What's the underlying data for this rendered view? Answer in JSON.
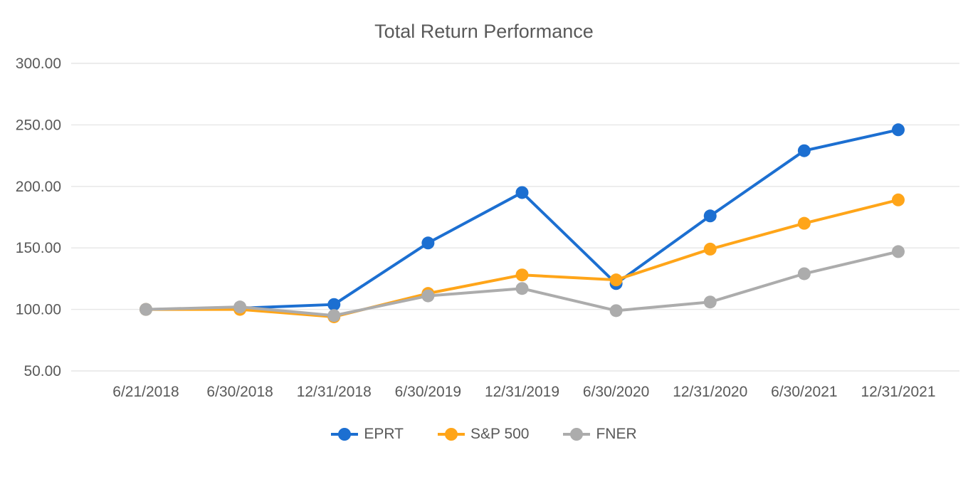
{
  "chart_data": {
    "type": "line",
    "title": "Total Return Performance",
    "categories": [
      "6/21/2018",
      "6/30/2018",
      "12/31/2018",
      "6/30/2019",
      "12/31/2019",
      "6/30/2020",
      "12/31/2020",
      "6/30/2021",
      "12/31/2021"
    ],
    "series": [
      {
        "name": "EPRT",
        "color": "#1C6FD1",
        "values": [
          100,
          101,
          104,
          154,
          195,
          121,
          176,
          229,
          246
        ]
      },
      {
        "name": "S&P 500",
        "color": "#FFA519",
        "values": [
          100,
          100,
          94,
          113,
          128,
          124,
          149,
          170,
          189
        ]
      },
      {
        "name": "FNER",
        "color": "#ACACAC",
        "values": [
          100,
          102,
          95,
          111,
          117,
          99,
          106,
          129,
          147
        ]
      }
    ],
    "ylim": [
      50,
      300
    ],
    "yticks": [
      300,
      250,
      200,
      150,
      100,
      50
    ],
    "ytick_label_format": "2-decimals",
    "xlabel": "",
    "ylabel": "",
    "grid": true,
    "legend_position": "bottom",
    "colors": {
      "grid": "#E6E6E6",
      "axis_text": "#595959"
    }
  }
}
